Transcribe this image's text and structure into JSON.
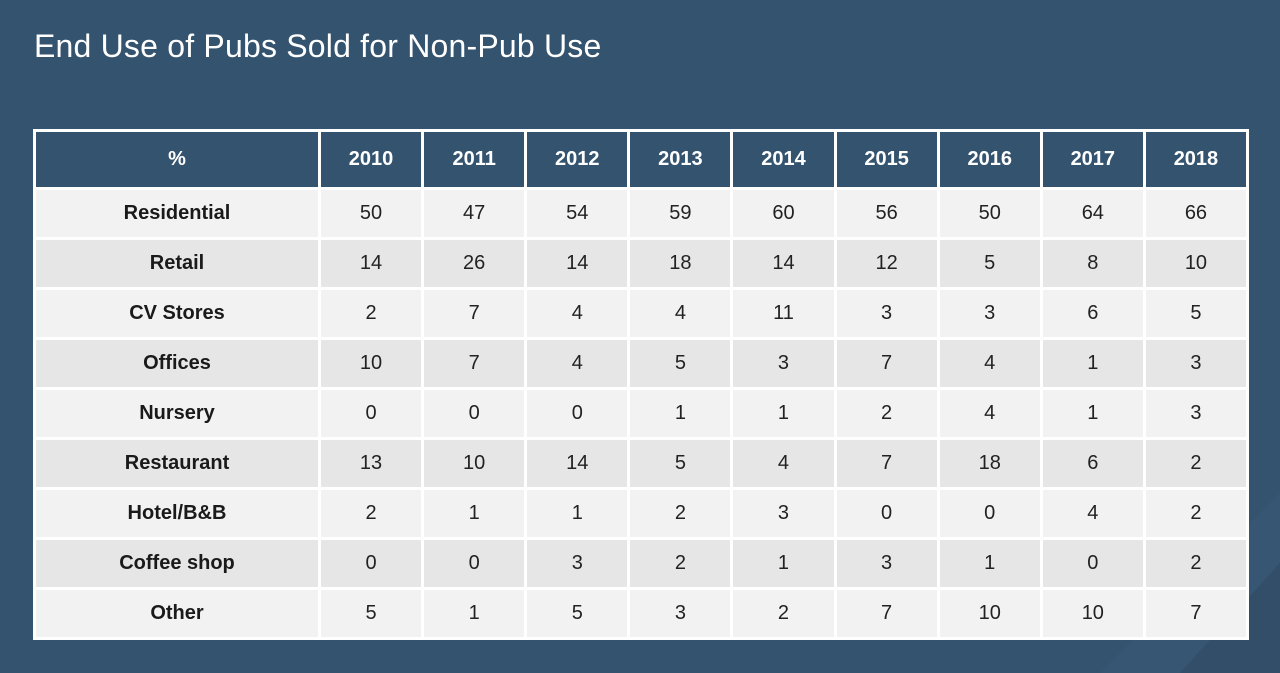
{
  "title": "End Use of Pubs Sold for Non-Pub Use",
  "chart_data": {
    "type": "table",
    "title": "End Use of Pubs Sold for Non-Pub Use",
    "corner_label": "%",
    "columns": [
      "2010",
      "2011",
      "2012",
      "2013",
      "2014",
      "2015",
      "2016",
      "2017",
      "2018"
    ],
    "rows": [
      {
        "label": "Residential",
        "values": [
          50,
          47,
          54,
          59,
          60,
          56,
          50,
          64,
          66
        ]
      },
      {
        "label": "Retail",
        "values": [
          14,
          26,
          14,
          18,
          14,
          12,
          5,
          8,
          10
        ]
      },
      {
        "label": "CV Stores",
        "values": [
          2,
          7,
          4,
          4,
          11,
          3,
          3,
          6,
          5
        ]
      },
      {
        "label": "Offices",
        "values": [
          10,
          7,
          4,
          5,
          3,
          7,
          4,
          1,
          3
        ]
      },
      {
        "label": "Nursery",
        "values": [
          0,
          0,
          0,
          1,
          1,
          2,
          4,
          1,
          3
        ]
      },
      {
        "label": "Restaurant",
        "values": [
          13,
          10,
          14,
          5,
          4,
          7,
          18,
          6,
          2
        ]
      },
      {
        "label": "Hotel/B&B",
        "values": [
          2,
          1,
          1,
          2,
          3,
          0,
          0,
          4,
          2
        ]
      },
      {
        "label": "Coffee shop",
        "values": [
          0,
          0,
          3,
          2,
          1,
          3,
          1,
          0,
          2
        ]
      },
      {
        "label": "Other",
        "values": [
          5,
          1,
          5,
          3,
          2,
          7,
          10,
          10,
          7
        ]
      }
    ]
  },
  "colors": {
    "background": "#34536f",
    "header_fill": "#34536f",
    "row_light": "#f2f2f2",
    "row_dark": "#e6e6e6",
    "border": "#ffffff"
  }
}
